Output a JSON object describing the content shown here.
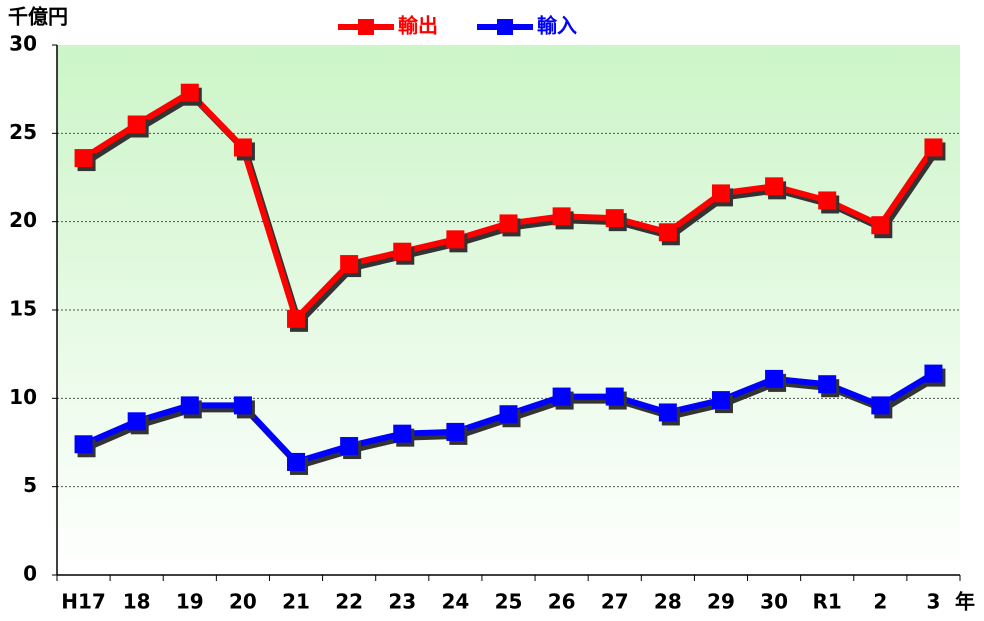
{
  "chart_data": {
    "type": "line",
    "y_unit_label": "千億円",
    "x_unit_label": "年",
    "categories": [
      "H17",
      "18",
      "19",
      "20",
      "21",
      "22",
      "23",
      "24",
      "25",
      "26",
      "27",
      "28",
      "29",
      "30",
      "R1",
      "2",
      "3"
    ],
    "series": [
      {
        "name": "輸出",
        "color": "#ff0000",
        "values": [
          23.6,
          25.5,
          27.3,
          24.2,
          14.5,
          17.6,
          18.3,
          19.0,
          19.9,
          20.3,
          20.2,
          19.4,
          21.6,
          22.0,
          21.2,
          19.8,
          24.2
        ]
      },
      {
        "name": "輸入",
        "color": "#0000ff",
        "values": [
          7.4,
          8.7,
          9.6,
          9.6,
          6.4,
          7.3,
          8.0,
          8.1,
          9.1,
          10.1,
          10.1,
          9.2,
          9.9,
          11.1,
          10.8,
          9.6,
          11.4
        ]
      }
    ],
    "ylim": [
      0,
      30
    ],
    "yticks": [
      0,
      5,
      10,
      15,
      20,
      25,
      30
    ],
    "grid": true
  }
}
